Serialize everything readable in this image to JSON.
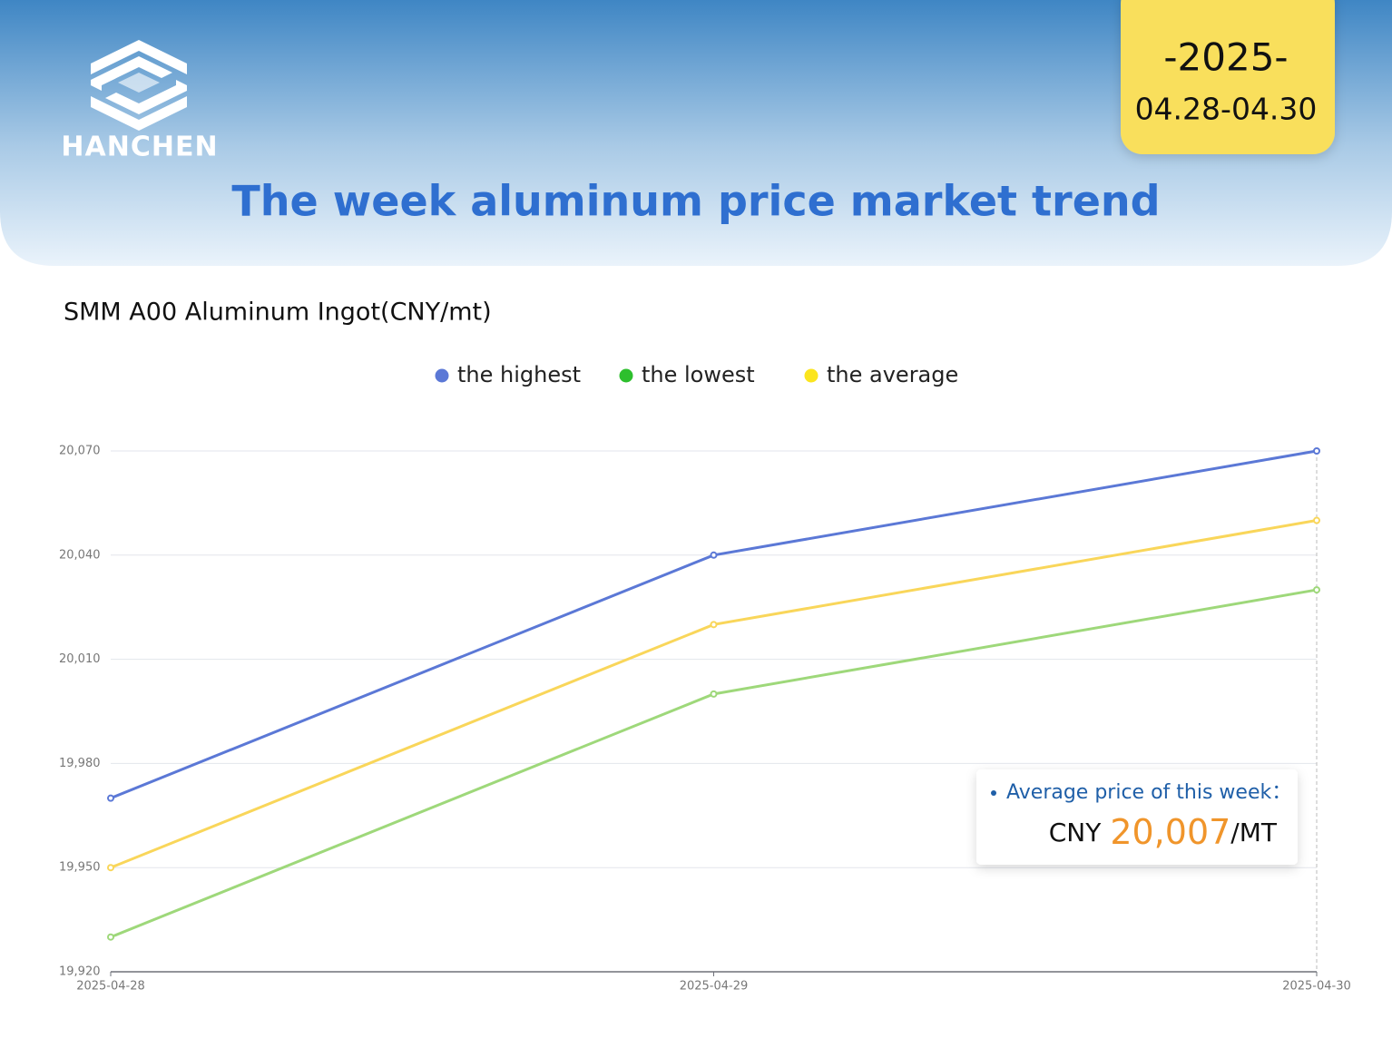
{
  "brand": "HANCHEN",
  "badge": {
    "year": "-2025-",
    "range": "04.28-04.30"
  },
  "title": "The week aluminum price market trend",
  "chart_data": {
    "type": "line",
    "title": "SMM A00 Aluminum Ingot(CNY/mt)",
    "categories": [
      "2025-04-28",
      "2025-04-29",
      "2025-04-30"
    ],
    "series": [
      {
        "name": "the highest",
        "color": "#5b78d6",
        "values": [
          19970,
          20040,
          20070
        ]
      },
      {
        "name": "the lowest",
        "color": "#9ed87a",
        "values": [
          19930,
          20000,
          20030
        ]
      },
      {
        "name": "the average",
        "color": "#f9d65a",
        "values": [
          19950,
          20020,
          20050
        ]
      }
    ],
    "legend_colors": [
      "#5b78d6",
      "#2dbf2d",
      "#fbe51e"
    ],
    "ylim": [
      19920,
      20070
    ],
    "yticks": [
      {
        "value": 19920,
        "label": "19,920"
      },
      {
        "value": 19950,
        "label": "19,950"
      },
      {
        "value": 19980,
        "label": "19,980"
      },
      {
        "value": 20010,
        "label": "20,010"
      },
      {
        "value": 20040,
        "label": "20,040"
      },
      {
        "value": 20070,
        "label": "20,070"
      }
    ],
    "grid": true,
    "legend": "top",
    "annotation": {
      "label": "Average price of this week：",
      "prefix": "CNY",
      "value": "20,007",
      "unit": "/MT"
    }
  }
}
